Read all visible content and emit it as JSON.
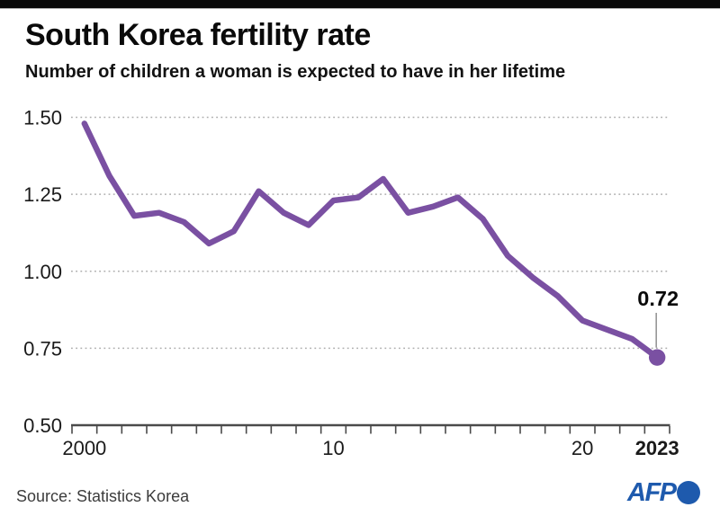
{
  "chart_data": {
    "type": "line",
    "title": "South Korea fertility rate",
    "subtitle": "Number of children a woman is expected to have in her lifetime",
    "xlabel": "",
    "ylabel": "",
    "x": [
      2000,
      2001,
      2002,
      2003,
      2004,
      2005,
      2006,
      2007,
      2008,
      2009,
      2010,
      2011,
      2012,
      2013,
      2014,
      2015,
      2016,
      2017,
      2018,
      2019,
      2020,
      2021,
      2022,
      2023
    ],
    "values": [
      1.48,
      1.31,
      1.18,
      1.19,
      1.16,
      1.09,
      1.13,
      1.26,
      1.19,
      1.15,
      1.23,
      1.24,
      1.3,
      1.19,
      1.21,
      1.24,
      1.17,
      1.05,
      0.98,
      0.92,
      0.84,
      0.81,
      0.78,
      0.72
    ],
    "ylim": [
      0.5,
      1.5
    ],
    "y_tick_values": [
      0.5,
      0.75,
      1.0,
      1.25,
      1.5
    ],
    "y_tick_labels": [
      "0.50",
      "0.75",
      "1.00",
      "1.25",
      "1.50"
    ],
    "x_tick_labels": [
      {
        "year": 2000,
        "label": "2000",
        "bold": false
      },
      {
        "year": 2010,
        "label": "10",
        "bold": false
      },
      {
        "year": 2020,
        "label": "20",
        "bold": false
      },
      {
        "year": 2023,
        "label": "2023",
        "bold": true
      }
    ],
    "minor_x_ticks_every_year": true,
    "grid": "horizontal-dotted",
    "legend": "none",
    "line_color": "#7a50a2",
    "marker_end": true,
    "end_annotation": {
      "label": "0.72",
      "year": 2023,
      "value": 0.72
    }
  },
  "footer": {
    "source": "Source: Statistics Korea",
    "logo_text": "AFP"
  },
  "colors": {
    "line": "#7a50a2",
    "afp_blue": "#1e5aad",
    "topbar": "#0a0a0a",
    "grid": "#aeaeae",
    "axis": "#4a4a4a",
    "annotation_connector": "#8f8f8f",
    "tick_label": "#1a1a1a"
  }
}
